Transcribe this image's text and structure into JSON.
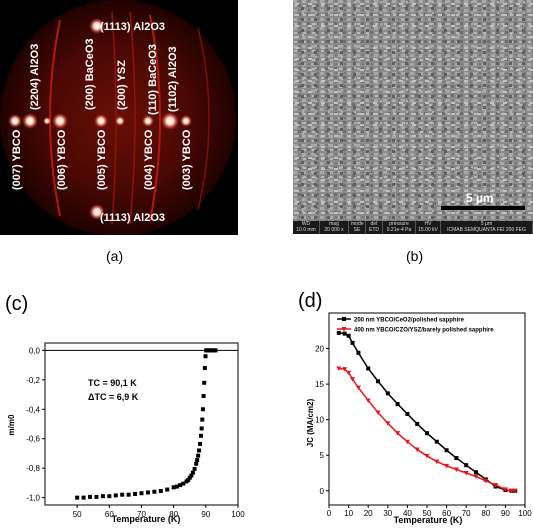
{
  "panels": {
    "a": {
      "caption": "(a)",
      "labels": [
        "(1113) Al2O3",
        "(2204) Al2O3",
        "(007) YBCO",
        "(006) YBCO",
        "(200) BaCeO3",
        "(005) YBCO",
        "(200) YSZ",
        "(004) YBCO",
        "(110) BaCeO3",
        "(1102) Al2O3",
        "(003) YBCO",
        "(1113) Al2O3"
      ]
    },
    "b": {
      "caption": "(b)",
      "scale_bar": "5 µm",
      "info_headers": [
        "WD",
        "mag",
        "mode",
        "det",
        "pressure",
        "HV",
        ""
      ],
      "info_values": [
        "10.0 mm",
        "20 000 x",
        "SE",
        "ETD",
        "9.21e-4 Pa",
        "15.00 kV",
        "ICMAB SEMQUANTA FEI 200 FEG"
      ],
      "info_scale": "5 µm"
    },
    "c": {
      "label": "(c)",
      "annotation_tc": "TC = 90,1 K",
      "annotation_dtc": "ΔTC = 6,9 K"
    },
    "d": {
      "label": "(d)"
    }
  },
  "chart_data": [
    {
      "type": "scatter",
      "xlabel": "Temperature (K)",
      "ylabel": "m/m0",
      "xlim": [
        40,
        100
      ],
      "ylim": [
        -1.05,
        0.05
      ],
      "x_ticks": [
        50,
        60,
        70,
        80,
        90,
        100
      ],
      "y_ticks": [
        0.0,
        -0.2,
        -0.4,
        -0.6,
        -0.8,
        -1.0
      ],
      "y_tick_labels": [
        "0,0",
        "-0,2",
        "-0,4",
        "-0,6",
        "-0,8",
        "-1,0"
      ],
      "series": [
        {
          "color": "#000000",
          "x": [
            50,
            52,
            54,
            56,
            58,
            60,
            62,
            64,
            66,
            68,
            70,
            72,
            74,
            76,
            78,
            80,
            81,
            82,
            83,
            84,
            84.5,
            85,
            85.5,
            86,
            86.5,
            87,
            87.3,
            87.6,
            87.9,
            88.2,
            88.5,
            88.7,
            88.9,
            89.1,
            89.3,
            89.5,
            89.7,
            89.9,
            90.1,
            90.3,
            90.6,
            91,
            91.5,
            92,
            92.5,
            93
          ],
          "y": [
            -1.0,
            -1.0,
            -0.995,
            -0.995,
            -0.99,
            -0.99,
            -0.985,
            -0.98,
            -0.98,
            -0.975,
            -0.97,
            -0.965,
            -0.96,
            -0.955,
            -0.945,
            -0.93,
            -0.925,
            -0.915,
            -0.905,
            -0.89,
            -0.88,
            -0.865,
            -0.85,
            -0.83,
            -0.805,
            -0.77,
            -0.745,
            -0.715,
            -0.68,
            -0.635,
            -0.58,
            -0.53,
            -0.47,
            -0.4,
            -0.31,
            -0.22,
            -0.12,
            -0.04,
            0.0,
            0.0,
            0.0,
            0.0,
            0.0,
            0.0,
            0.0,
            0.0
          ]
        }
      ]
    },
    {
      "type": "line",
      "xlabel": "Temperature (K)",
      "ylabel": "JC (MA/cm2)",
      "xlim": [
        0,
        100
      ],
      "ylim": [
        -2,
        25
      ],
      "x_ticks": [
        0,
        10,
        20,
        30,
        40,
        50,
        60,
        70,
        80,
        90,
        100
      ],
      "y_ticks": [
        0,
        5,
        10,
        15,
        20
      ],
      "legend_position": "top-left",
      "series": [
        {
          "name": "200 nm YBCO/CeO2/polished sapphire",
          "color": "#000000",
          "x": [
            5,
            8,
            10,
            12,
            15,
            20,
            25,
            30,
            35,
            40,
            45,
            50,
            55,
            60,
            65,
            70,
            75,
            80,
            85,
            90,
            93,
            95
          ],
          "y": [
            22.2,
            22.1,
            21.8,
            20.8,
            19.4,
            17.2,
            15.4,
            13.7,
            12.2,
            10.8,
            9.4,
            8.1,
            6.9,
            5.7,
            4.6,
            3.6,
            2.6,
            1.6,
            0.6,
            0.1,
            0.0,
            0.0
          ]
        },
        {
          "name": "400 nm YBCO/CZO/YSZ/barely polished sapphire",
          "color": "#e8141c",
          "x": [
            5,
            8,
            10,
            12,
            15,
            20,
            25,
            30,
            35,
            40,
            45,
            50,
            55,
            60,
            65,
            70,
            75,
            80,
            85,
            90,
            93,
            95
          ],
          "y": [
            17.2,
            17.1,
            16.6,
            15.7,
            14.5,
            12.7,
            11.0,
            9.5,
            8.1,
            6.9,
            5.8,
            4.9,
            4.1,
            3.5,
            3.0,
            2.5,
            2.0,
            1.4,
            0.8,
            0.2,
            0.0,
            0.0
          ]
        }
      ]
    }
  ]
}
